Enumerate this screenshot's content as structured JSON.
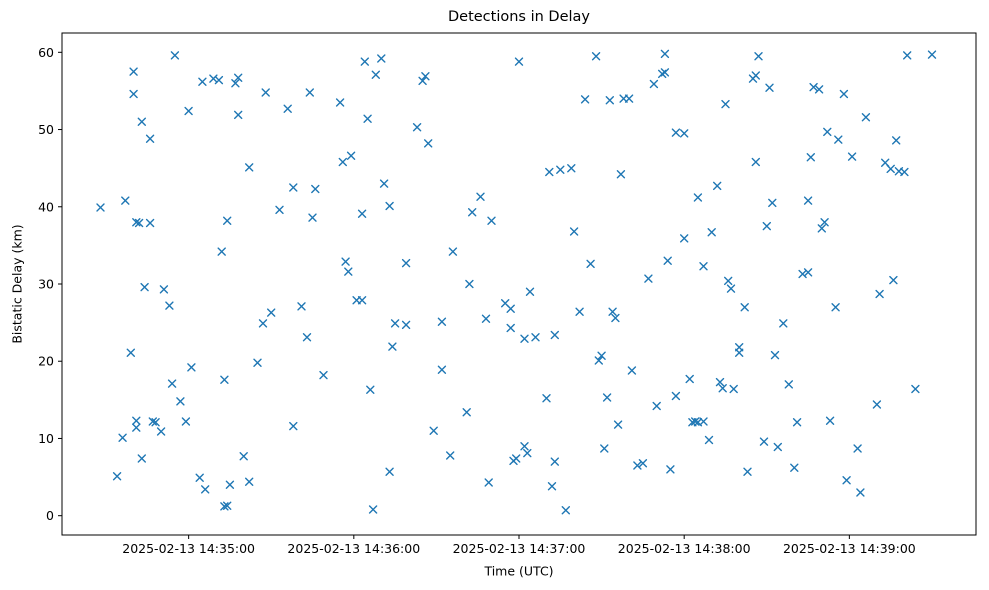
{
  "chart_data": {
    "type": "scatter",
    "title": "Detections in Delay",
    "xlabel": "Time (UTC)",
    "ylabel": "Bistatic Delay (km)",
    "marker": "x",
    "color": "#1f77b4",
    "grid": false,
    "legend": "none",
    "x_unit": "seconds after 2025-02-13 14:34:00 UTC",
    "x_range_seconds": [
      14,
      346
    ],
    "y_range": [
      -2.5,
      62.5
    ],
    "x_ticks": [
      {
        "t": 60,
        "label": "2025-02-13 14:35:00"
      },
      {
        "t": 120,
        "label": "2025-02-13 14:36:00"
      },
      {
        "t": 180,
        "label": "2025-02-13 14:37:00"
      },
      {
        "t": 240,
        "label": "2025-02-13 14:38:00"
      },
      {
        "t": 300,
        "label": "2025-02-13 14:39:00"
      }
    ],
    "y_ticks": [
      0,
      10,
      20,
      30,
      40,
      50,
      60
    ],
    "points": [
      [
        28,
        39.9
      ],
      [
        34,
        5.1
      ],
      [
        36,
        10.1
      ],
      [
        37,
        40.8
      ],
      [
        39,
        21.1
      ],
      [
        40,
        57.5
      ],
      [
        40,
        54.6
      ],
      [
        41,
        38.0
      ],
      [
        42,
        37.9
      ],
      [
        41,
        12.3
      ],
      [
        41,
        11.4
      ],
      [
        43,
        7.4
      ],
      [
        43,
        51.0
      ],
      [
        44,
        29.6
      ],
      [
        46,
        37.9
      ],
      [
        46,
        48.8
      ],
      [
        47,
        12.2
      ],
      [
        48,
        12.1
      ],
      [
        50,
        10.9
      ],
      [
        51,
        29.3
      ],
      [
        53,
        27.2
      ],
      [
        54,
        17.1
      ],
      [
        55,
        59.6
      ],
      [
        57,
        14.8
      ],
      [
        59,
        12.2
      ],
      [
        60,
        52.4
      ],
      [
        61,
        19.2
      ],
      [
        64,
        4.9
      ],
      [
        65,
        56.2
      ],
      [
        66,
        3.4
      ],
      [
        69,
        56.6
      ],
      [
        71,
        56.4
      ],
      [
        72,
        34.2
      ],
      [
        73,
        1.2
      ],
      [
        73,
        17.6
      ],
      [
        74,
        1.3
      ],
      [
        74,
        38.2
      ],
      [
        75,
        4.0
      ],
      [
        77,
        56.0
      ],
      [
        78,
        56.7
      ],
      [
        78,
        51.9
      ],
      [
        80,
        7.7
      ],
      [
        82,
        4.4
      ],
      [
        82,
        45.1
      ],
      [
        85,
        19.8
      ],
      [
        87,
        24.9
      ],
      [
        88,
        54.8
      ],
      [
        90,
        26.3
      ],
      [
        93,
        39.6
      ],
      [
        96,
        52.7
      ],
      [
        98,
        11.6
      ],
      [
        98,
        42.5
      ],
      [
        101,
        27.1
      ],
      [
        103,
        23.1
      ],
      [
        104,
        54.8
      ],
      [
        105,
        38.6
      ],
      [
        106,
        42.3
      ],
      [
        109,
        18.2
      ],
      [
        115,
        53.5
      ],
      [
        116,
        45.8
      ],
      [
        117,
        32.9
      ],
      [
        118,
        31.6
      ],
      [
        119,
        46.6
      ],
      [
        121,
        27.9
      ],
      [
        123,
        27.9
      ],
      [
        123,
        39.1
      ],
      [
        124,
        58.8
      ],
      [
        125,
        51.4
      ],
      [
        126,
        16.3
      ],
      [
        127,
        0.8
      ],
      [
        128,
        57.1
      ],
      [
        130,
        59.2
      ],
      [
        131,
        43.0
      ],
      [
        133,
        40.1
      ],
      [
        133,
        5.7
      ],
      [
        134,
        21.9
      ],
      [
        135,
        24.9
      ],
      [
        139,
        24.7
      ],
      [
        139,
        32.7
      ],
      [
        143,
        50.3
      ],
      [
        145,
        56.3
      ],
      [
        146,
        56.9
      ],
      [
        147,
        48.2
      ],
      [
        149,
        11.0
      ],
      [
        152,
        25.1
      ],
      [
        152,
        18.9
      ],
      [
        155,
        7.8
      ],
      [
        156,
        34.2
      ],
      [
        161,
        13.4
      ],
      [
        162,
        30.0
      ],
      [
        163,
        39.3
      ],
      [
        166,
        41.3
      ],
      [
        168,
        25.5
      ],
      [
        169,
        4.3
      ],
      [
        170,
        38.2
      ],
      [
        175,
        27.5
      ],
      [
        177,
        26.8
      ],
      [
        177,
        24.3
      ],
      [
        178,
        7.1
      ],
      [
        179,
        7.4
      ],
      [
        180,
        58.8
      ],
      [
        182,
        22.9
      ],
      [
        182,
        9.0
      ],
      [
        183,
        8.1
      ],
      [
        184,
        29.0
      ],
      [
        186,
        23.1
      ],
      [
        190,
        15.2
      ],
      [
        191,
        44.5
      ],
      [
        192,
        3.8
      ],
      [
        193,
        23.4
      ],
      [
        193,
        7.0
      ],
      [
        195,
        44.8
      ],
      [
        197,
        0.7
      ],
      [
        199,
        45.0
      ],
      [
        200,
        36.8
      ],
      [
        202,
        26.4
      ],
      [
        204,
        53.9
      ],
      [
        206,
        32.6
      ],
      [
        208,
        59.5
      ],
      [
        209,
        20.1
      ],
      [
        210,
        20.7
      ],
      [
        211,
        8.7
      ],
      [
        212,
        15.3
      ],
      [
        213,
        53.8
      ],
      [
        214,
        26.4
      ],
      [
        215,
        25.6
      ],
      [
        216,
        11.8
      ],
      [
        217,
        44.2
      ],
      [
        218,
        54.0
      ],
      [
        220,
        54.0
      ],
      [
        221,
        18.8
      ],
      [
        223,
        6.5
      ],
      [
        225,
        6.8
      ],
      [
        227,
        30.7
      ],
      [
        229,
        55.9
      ],
      [
        230,
        14.2
      ],
      [
        232,
        57.2
      ],
      [
        233,
        57.4
      ],
      [
        233,
        59.8
      ],
      [
        234,
        33.0
      ],
      [
        235,
        6.0
      ],
      [
        237,
        15.5
      ],
      [
        237,
        49.6
      ],
      [
        240,
        49.5
      ],
      [
        240,
        35.9
      ],
      [
        242,
        17.7
      ],
      [
        243,
        12.1
      ],
      [
        244,
        12.2
      ],
      [
        245,
        12.1
      ],
      [
        245,
        41.2
      ],
      [
        247,
        12.2
      ],
      [
        247,
        32.3
      ],
      [
        249,
        9.8
      ],
      [
        250,
        36.7
      ],
      [
        252,
        42.7
      ],
      [
        253,
        17.3
      ],
      [
        254,
        16.5
      ],
      [
        255,
        53.3
      ],
      [
        256,
        30.4
      ],
      [
        257,
        29.4
      ],
      [
        258,
        16.4
      ],
      [
        260,
        21.8
      ],
      [
        260,
        21.1
      ],
      [
        262,
        27.0
      ],
      [
        263,
        5.7
      ],
      [
        265,
        56.6
      ],
      [
        266,
        57.0
      ],
      [
        266,
        45.8
      ],
      [
        267,
        59.5
      ],
      [
        269,
        9.6
      ],
      [
        270,
        37.5
      ],
      [
        271,
        55.4
      ],
      [
        272,
        40.5
      ],
      [
        273,
        20.8
      ],
      [
        274,
        8.9
      ],
      [
        276,
        24.9
      ],
      [
        278,
        17.0
      ],
      [
        280,
        6.2
      ],
      [
        281,
        12.1
      ],
      [
        283,
        31.3
      ],
      [
        285,
        31.5
      ],
      [
        285,
        40.8
      ],
      [
        286,
        46.4
      ],
      [
        287,
        55.5
      ],
      [
        289,
        55.2
      ],
      [
        290,
        37.2
      ],
      [
        291,
        38.0
      ],
      [
        292,
        49.7
      ],
      [
        293,
        12.3
      ],
      [
        295,
        27.0
      ],
      [
        296,
        48.7
      ],
      [
        298,
        54.6
      ],
      [
        299,
        4.6
      ],
      [
        301,
        46.5
      ],
      [
        303,
        8.7
      ],
      [
        304,
        3.0
      ],
      [
        306,
        51.6
      ],
      [
        310,
        14.4
      ],
      [
        311,
        28.7
      ],
      [
        313,
        45.7
      ],
      [
        315,
        44.9
      ],
      [
        316,
        30.5
      ],
      [
        317,
        48.6
      ],
      [
        318,
        44.6
      ],
      [
        320,
        44.5
      ],
      [
        321,
        59.6
      ],
      [
        324,
        16.4
      ],
      [
        330,
        59.7
      ]
    ]
  }
}
